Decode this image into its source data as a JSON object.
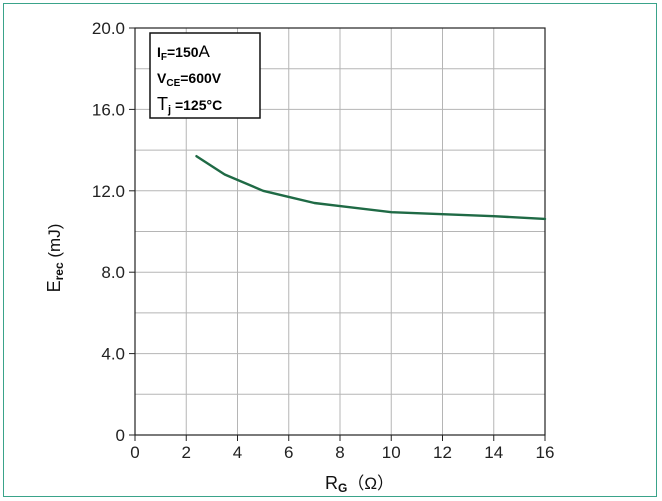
{
  "chart_data": {
    "type": "line",
    "x": [
      2.4,
      3.5,
      5.0,
      6.0,
      7.0,
      8.0,
      10.0,
      12.0,
      14.0,
      16.0
    ],
    "series": [
      {
        "values": [
          13.7,
          12.8,
          12.0,
          11.7,
          11.4,
          11.25,
          10.95,
          10.85,
          10.75,
          10.62
        ],
        "color": "#1f6a45"
      }
    ],
    "xlim": [
      0,
      16
    ],
    "ylim": [
      0,
      20
    ],
    "xticks": [
      0,
      2,
      4,
      6,
      8,
      10,
      12,
      14,
      16
    ],
    "yticks": [
      0,
      4,
      8,
      12,
      16,
      20
    ],
    "xtick_labels": [
      "0",
      "2",
      "4",
      "6",
      "8",
      "10",
      "12",
      "14",
      "16"
    ],
    "ytick_labels": [
      "0",
      "4.0",
      "8.0",
      "12.0",
      "16.0",
      "20.0"
    ],
    "xlabel": {
      "main": "R",
      "sub": "G",
      "unit": "（Ω）"
    },
    "ylabel": {
      "main": "E",
      "sub": "rec",
      "unit": " (mJ)"
    },
    "grid": true,
    "annotation": {
      "line1": {
        "main": "I",
        "sub": "F",
        "value": "=150",
        "unit": "A"
      },
      "line2": {
        "main": "V",
        "sub": "CE",
        "value": "=600V"
      },
      "line3": {
        "main": "T",
        "sub": "j",
        "value": " =125°C"
      }
    },
    "colors": {
      "frame": "#3aa38a",
      "grid": "#b5b5b5",
      "axis": "#222222"
    }
  }
}
